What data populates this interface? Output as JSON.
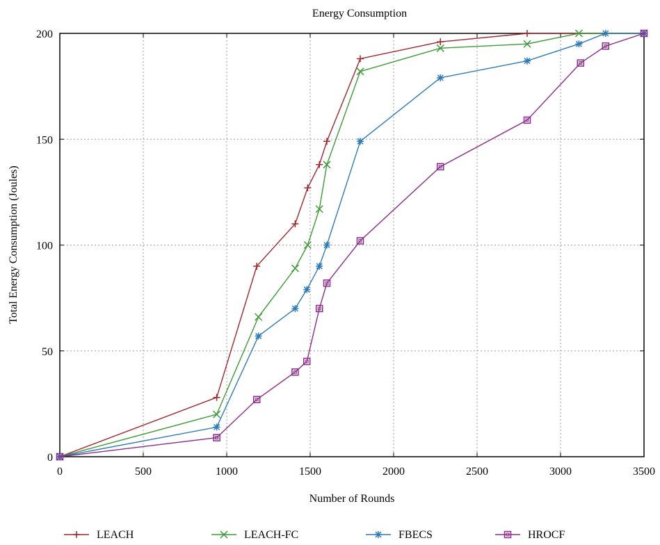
{
  "chart_data": {
    "type": "line",
    "title": "Energy Consumption",
    "xlabel": "Number of Rounds",
    "ylabel": "Total Energy Consumption (Joules)",
    "xlim": [
      0,
      3500
    ],
    "ylim": [
      0,
      200
    ],
    "xticks": [
      0,
      500,
      1000,
      1500,
      2000,
      2500,
      3000,
      3500
    ],
    "yticks": [
      0,
      50,
      100,
      150,
      200
    ],
    "grid": true,
    "legend_position": "bottom",
    "series": [
      {
        "name": "LEACH",
        "color": "#a0262b",
        "marker": "plus",
        "points": [
          [
            0,
            0
          ],
          [
            940,
            28
          ],
          [
            1180,
            90
          ],
          [
            1410,
            110
          ],
          [
            1485,
            127
          ],
          [
            1555,
            138
          ],
          [
            1600,
            149
          ],
          [
            1800,
            188
          ],
          [
            2280,
            196
          ],
          [
            2800,
            200
          ],
          [
            3500,
            200
          ]
        ]
      },
      {
        "name": "LEACH-FC",
        "color": "#3a9a33",
        "marker": "x",
        "points": [
          [
            0,
            0
          ],
          [
            940,
            20
          ],
          [
            1190,
            66
          ],
          [
            1410,
            89
          ],
          [
            1485,
            100
          ],
          [
            1555,
            117
          ],
          [
            1600,
            138
          ],
          [
            1800,
            182
          ],
          [
            2280,
            193
          ],
          [
            2800,
            195
          ],
          [
            3110,
            200
          ],
          [
            3500,
            200
          ]
        ]
      },
      {
        "name": "FBECS",
        "color": "#2c7ab8",
        "marker": "star",
        "points": [
          [
            0,
            0
          ],
          [
            940,
            14
          ],
          [
            1190,
            57
          ],
          [
            1410,
            70
          ],
          [
            1480,
            79
          ],
          [
            1555,
            90
          ],
          [
            1600,
            100
          ],
          [
            1800,
            149
          ],
          [
            2280,
            179
          ],
          [
            2800,
            187
          ],
          [
            3110,
            195
          ],
          [
            3270,
            200
          ],
          [
            3500,
            200
          ]
        ]
      },
      {
        "name": "HROCF",
        "color": "#8b2a8b",
        "marker": "square",
        "points": [
          [
            0,
            0
          ],
          [
            940,
            9
          ],
          [
            1180,
            27
          ],
          [
            1410,
            40
          ],
          [
            1480,
            45
          ],
          [
            1555,
            70
          ],
          [
            1600,
            82
          ],
          [
            1800,
            102
          ],
          [
            2280,
            137
          ],
          [
            2800,
            159
          ],
          [
            3120,
            186
          ],
          [
            3270,
            194
          ],
          [
            3500,
            200
          ]
        ]
      }
    ]
  }
}
